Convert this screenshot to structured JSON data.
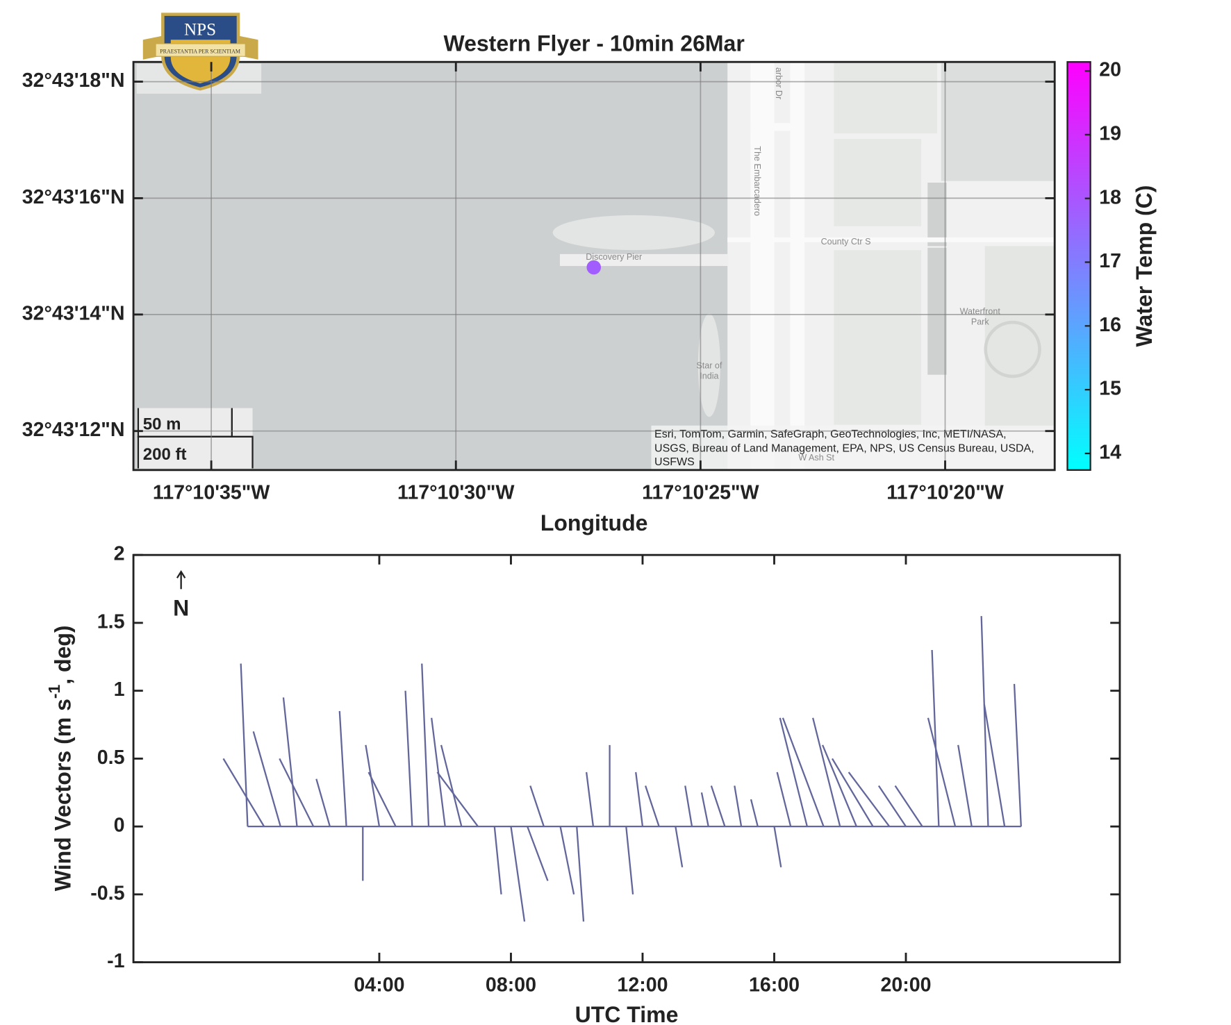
{
  "logo": {
    "text": "NPS",
    "motto": "PRAESTANTIA PER SCIENTIAM"
  },
  "chart_data": [
    {
      "type": "scatter",
      "title": "Western Flyer - 10min 26Mar",
      "xlabel": "Longitude",
      "colorbar_label": "Water Temp (C)",
      "x": [
        -117.174217
      ],
      "y": [
        32.720781
      ],
      "c": [
        17.8
      ],
      "colormap_colors": [
        "#00ffff",
        "#ff00ff"
      ],
      "clim": [
        13.74,
        20.14
      ],
      "cticks": [
        14,
        15,
        16,
        17,
        18,
        19,
        20
      ],
      "xlim": [
        -117.176831,
        -117.1716
      ],
      "xticks": [
        {
          "value": -117.176389,
          "label": "117°10'35\"W"
        },
        {
          "value": -117.175,
          "label": "117°10'30\"W"
        },
        {
          "value": -117.173611,
          "label": "117°10'25\"W"
        },
        {
          "value": -117.172222,
          "label": "117°10'20\"W"
        }
      ],
      "ylim": [
        32.719814,
        32.721761
      ],
      "yticks": [
        {
          "value": 32.721667,
          "label": "32°43'18\"N"
        },
        {
          "value": 32.721111,
          "label": "32°43'16\"N"
        },
        {
          "value": 32.720556,
          "label": "32°43'14\"N"
        },
        {
          "value": 32.72,
          "label": "32°43'12\"N"
        }
      ],
      "grid": true,
      "scale_bar": [
        "50 m",
        "200 ft"
      ],
      "map_labels": [
        "Discovery Pier",
        "The Embarcadero",
        "arbor Dr",
        "County Ctr S",
        "Waterfront",
        "Park",
        "Star of",
        "India",
        "W Ash St"
      ],
      "attribution": [
        "Esri, TomTom, Garmin, SafeGraph, GeoTechnologies, Inc, METI/NASA,",
        "USGS, Bureau of Land Management, EPA, NPS, US Census Bureau, USDA,",
        "USFWS"
      ]
    },
    {
      "type": "quiver",
      "xlabel": "UTC Time",
      "ylabel": [
        "Wind Vectors (m s",
        "-1",
        ", deg)"
      ],
      "north_label": "N",
      "color": "#62669a",
      "x": [
        0,
        0.5,
        1,
        1.5,
        2,
        2.5,
        3,
        3.5,
        4,
        4.5,
        5,
        5.5,
        6,
        6.5,
        7,
        7.5,
        8,
        8.5,
        9,
        9.5,
        10,
        10.5,
        11,
        11.5,
        12,
        12.5,
        13,
        13.5,
        14,
        14.5,
        15,
        15.5,
        16,
        16.5,
        17,
        17.5,
        18,
        18.5,
        19,
        19.5,
        20,
        20.5,
        21,
        21.5,
        22,
        22.5,
        23,
        23.5
      ],
      "u": [
        -0.05,
        -0.3,
        -0.2,
        -0.1,
        -0.25,
        -0.1,
        -0.05,
        0,
        -0.1,
        -0.2,
        -0.05,
        -0.05,
        -0.1,
        -0.15,
        -0.3,
        0.05,
        0.1,
        0.15,
        -0.1,
        0.1,
        0.05,
        -0.05,
        0,
        0.05,
        -0.05,
        -0.1,
        0.05,
        -0.05,
        -0.05,
        -0.1,
        -0.05,
        -0.05,
        0.05,
        -0.1,
        -0.2,
        -0.3,
        -0.2,
        -0.25,
        -0.3,
        -0.3,
        -0.2,
        -0.2,
        -0.05,
        -0.2,
        -0.1,
        -0.05,
        -0.15,
        -0.05
      ],
      "v": [
        1.2,
        0.5,
        0.7,
        0.95,
        0.5,
        0.35,
        0.85,
        -0.4,
        0.6,
        0.4,
        1.0,
        1.2,
        0.8,
        0.6,
        0.4,
        -0.5,
        -0.7,
        -0.4,
        0.3,
        -0.5,
        -0.7,
        0.4,
        0.6,
        -0.5,
        0.4,
        0.3,
        -0.3,
        0.3,
        0.25,
        0.3,
        0.3,
        0.2,
        -0.3,
        0.4,
        0.8,
        0.8,
        0.8,
        0.6,
        0.5,
        0.4,
        0.3,
        0.3,
        1.3,
        0.8,
        0.6,
        1.55,
        0.9,
        1.05
      ],
      "xlim": [
        -3.47,
        26.5
      ],
      "xticks": [
        {
          "value": 4,
          "label": "04:00"
        },
        {
          "value": 8,
          "label": "08:00"
        },
        {
          "value": 12,
          "label": "12:00"
        },
        {
          "value": 16,
          "label": "16:00"
        },
        {
          "value": 20,
          "label": "20:00"
        }
      ],
      "ylim": [
        -1,
        2
      ],
      "yticks": [
        -1,
        -0.5,
        0,
        0.5,
        1,
        1.5,
        2
      ]
    }
  ]
}
